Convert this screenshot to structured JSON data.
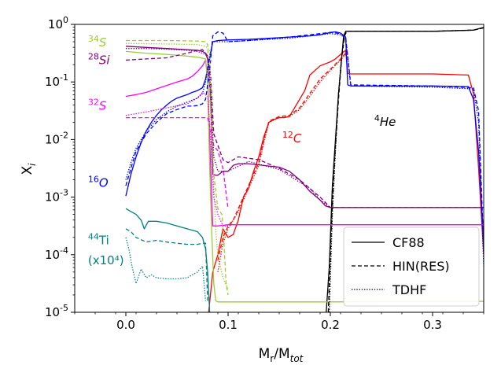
{
  "chart_data": {
    "type": "line",
    "xlabel": "M_r/M_tot",
    "ylabel": "X_i",
    "xlim": [
      -0.05,
      0.35
    ],
    "ylim_log10": [
      -5,
      0
    ],
    "yscale": "log",
    "x_ticks": [
      {
        "value": 0.0,
        "label": "0.0"
      },
      {
        "value": 0.1,
        "label": "0.1"
      },
      {
        "value": 0.2,
        "label": "0.2"
      },
      {
        "value": 0.3,
        "label": "0.3"
      }
    ],
    "y_ticks": [
      {
        "value": 0,
        "mantissa": "10",
        "exp": "0"
      },
      {
        "value": -1,
        "mantissa": "10",
        "exp": "-1"
      },
      {
        "value": -2,
        "mantissa": "10",
        "exp": "-2"
      },
      {
        "value": -3,
        "mantissa": "10",
        "exp": "-3"
      },
      {
        "value": -4,
        "mantissa": "10",
        "exp": "-4"
      },
      {
        "value": -5,
        "mantissa": "10",
        "exp": "-5"
      }
    ],
    "legend": [
      {
        "label": "CF88",
        "style": "solid"
      },
      {
        "label": "HIN(RES)",
        "style": "dashed"
      },
      {
        "label": "TDHF",
        "style": "dotted"
      }
    ],
    "annotations": [
      {
        "id": "s34",
        "sup": "34",
        "text": "S",
        "color": "#9acd32",
        "x": -0.037,
        "y": -0.38
      },
      {
        "id": "si28",
        "sup": "28",
        "text": "Si",
        "color": "#800080",
        "x": -0.037,
        "y": -0.69
      },
      {
        "id": "s32",
        "sup": "32",
        "text": "S",
        "color": "#ff00ff",
        "x": -0.037,
        "y": -1.48
      },
      {
        "id": "o16",
        "sup": "16",
        "text": "O",
        "color": "#0000ff",
        "x": -0.037,
        "y": -2.82
      },
      {
        "id": "ti44",
        "sup": "44",
        "text": "Ti",
        "color": "#008080",
        "x": -0.037,
        "y": -3.82
      },
      {
        "id": "ti44note",
        "sup": "",
        "text": "(x10⁴)",
        "color": "#008080",
        "x": -0.037,
        "y": -4.17
      },
      {
        "id": "c12",
        "sup": "12",
        "text": "C",
        "color": "#ff0000",
        "x": 0.153,
        "y": -2.05
      },
      {
        "id": "he4",
        "sup": "4",
        "text": "He",
        "color": "#000000",
        "x": 0.243,
        "y": -1.76
      }
    ],
    "series": [
      {
        "name": "4He",
        "color": "#000000",
        "style": "solid",
        "x": [
          0.196,
          0.199,
          0.202,
          0.205,
          0.208,
          0.211,
          0.213,
          0.215,
          0.217,
          0.3,
          0.34,
          0.35
        ],
        "y": [
          -5,
          -4.2,
          -2.8,
          -2.0,
          -1.2,
          -0.6,
          -0.2,
          -0.12,
          -0.12,
          -0.12,
          -0.1,
          -0.05
        ]
      },
      {
        "name": "12C",
        "color": "#ff0000",
        "style": "solid",
        "x": [
          0.081,
          0.085,
          0.09,
          0.095,
          0.1,
          0.105,
          0.11,
          0.115,
          0.12,
          0.125,
          0.13,
          0.135,
          0.14,
          0.145,
          0.15,
          0.155,
          0.16,
          0.17,
          0.175,
          0.18,
          0.19,
          0.2,
          0.205,
          0.21,
          0.215,
          0.217,
          0.22,
          0.3,
          0.335,
          0.34,
          0.345,
          0.35
        ],
        "y": [
          -5,
          -4.3,
          -4.0,
          -3.55,
          -3.7,
          -3.65,
          -3.4,
          -3.0,
          -2.85,
          -2.55,
          -2.3,
          -1.95,
          -1.7,
          -1.65,
          -1.62,
          -1.62,
          -1.6,
          -1.3,
          -1.15,
          -0.88,
          -0.72,
          -0.65,
          -0.6,
          -0.52,
          -0.45,
          -0.85,
          -0.86,
          -0.86,
          -0.88,
          -1.2,
          -2.5,
          -4.0
        ]
      },
      {
        "name": "16O",
        "color": "#0000ff",
        "style": "solid",
        "x": [
          0.0,
          0.005,
          0.01,
          0.015,
          0.02,
          0.025,
          0.03,
          0.035,
          0.04,
          0.045,
          0.05,
          0.055,
          0.06,
          0.065,
          0.07,
          0.075,
          0.078,
          0.08,
          0.082,
          0.085,
          0.09,
          0.1,
          0.12,
          0.14,
          0.16,
          0.18,
          0.19,
          0.195,
          0.2,
          0.205,
          0.21,
          0.215,
          0.217,
          0.22,
          0.3,
          0.335,
          0.34,
          0.345,
          0.35
        ],
        "y": [
          -2.98,
          -2.6,
          -2.3,
          -2.05,
          -1.85,
          -1.7,
          -1.58,
          -1.48,
          -1.4,
          -1.33,
          -1.28,
          -1.25,
          -1.22,
          -1.18,
          -1.15,
          -1.1,
          -0.95,
          -0.75,
          -0.6,
          -0.3,
          -0.28,
          -0.27,
          -0.26,
          -0.24,
          -0.22,
          -0.2,
          -0.18,
          -0.16,
          -0.14,
          -0.13,
          -0.15,
          -0.22,
          -1.05,
          -1.07,
          -1.07,
          -1.08,
          -1.3,
          -2.2,
          -3.8
        ]
      },
      {
        "name": "28Si",
        "color": "#800080",
        "style": "solid",
        "x": [
          0.0,
          0.02,
          0.04,
          0.06,
          0.07,
          0.075,
          0.078,
          0.08,
          0.083,
          0.085,
          0.088,
          0.09,
          0.095,
          0.1,
          0.105,
          0.11,
          0.115,
          0.12,
          0.13,
          0.14,
          0.15,
          0.16,
          0.17,
          0.18,
          0.19,
          0.195,
          0.2,
          0.3,
          0.35
        ],
        "y": [
          -0.38,
          -0.4,
          -0.42,
          -0.44,
          -0.45,
          -0.47,
          -0.5,
          -0.6,
          -1.3,
          -2.6,
          -2.62,
          -2.62,
          -2.55,
          -2.55,
          -2.45,
          -2.42,
          -2.42,
          -2.42,
          -2.44,
          -2.46,
          -2.48,
          -2.55,
          -2.7,
          -2.9,
          -3.05,
          -3.15,
          -3.18,
          -3.18,
          -3.18
        ]
      },
      {
        "name": "32S",
        "color": "#ff00ff",
        "style": "solid",
        "x": [
          0.0,
          0.01,
          0.02,
          0.03,
          0.04,
          0.05,
          0.06,
          0.065,
          0.07,
          0.075,
          0.078,
          0.08,
          0.082,
          0.085,
          0.09,
          0.095,
          0.1,
          0.3,
          0.35
        ],
        "y": [
          -1.25,
          -1.22,
          -1.18,
          -1.12,
          -1.06,
          -1.0,
          -0.95,
          -0.9,
          -0.82,
          -0.72,
          -0.62,
          -0.9,
          -2.0,
          -3.5,
          -3.5,
          -3.49,
          -3.48,
          -3.48,
          -3.48
        ]
      },
      {
        "name": "34S",
        "color": "#9acd32",
        "style": "solid",
        "x": [
          0.0,
          0.02,
          0.04,
          0.06,
          0.07,
          0.078,
          0.08,
          0.082,
          0.084,
          0.086,
          0.088,
          0.09,
          0.095,
          0.1,
          0.2,
          0.3,
          0.35
        ],
        "y": [
          -0.47,
          -0.5,
          -0.52,
          -0.55,
          -0.57,
          -0.6,
          -1.0,
          -2.5,
          -3.6,
          -4.5,
          -4.8,
          -4.82,
          -4.82,
          -4.82,
          -4.82,
          -4.81,
          -4.81
        ]
      },
      {
        "name": "44Ti",
        "color": "#008080",
        "style": "solid",
        "x": [
          0.0,
          0.005,
          0.01,
          0.015,
          0.018,
          0.022,
          0.03,
          0.04,
          0.05,
          0.06,
          0.07,
          0.075,
          0.078,
          0.08,
          0.082
        ],
        "y": [
          -3.2,
          -3.25,
          -3.3,
          -3.4,
          -3.55,
          -3.42,
          -3.42,
          -3.45,
          -3.5,
          -3.55,
          -3.6,
          -3.7,
          -3.9,
          -4.3,
          -5.0
        ]
      },
      {
        "name": "34S",
        "color": "#9acd32",
        "style": "dashed",
        "x": [
          0.0,
          0.04,
          0.07,
          0.078,
          0.08,
          0.082,
          0.084,
          0.086,
          0.09,
          0.094,
          0.096,
          0.098,
          0.1
        ],
        "y": [
          -0.28,
          -0.28,
          -0.29,
          -0.3,
          -0.35,
          -1.2,
          -1.9,
          -2.6,
          -3.2,
          -3.3,
          -3.8,
          -4.5,
          -4.7
        ]
      },
      {
        "name": "28Si",
        "color": "#800080",
        "style": "dashed",
        "x": [
          0.0,
          0.02,
          0.04,
          0.06,
          0.07,
          0.075,
          0.078,
          0.08,
          0.083,
          0.086,
          0.09,
          0.095,
          0.1,
          0.11,
          0.13,
          0.15,
          0.17,
          0.19,
          0.2,
          0.35
        ],
        "y": [
          -0.62,
          -0.6,
          -0.58,
          -0.5,
          -0.45,
          -0.44,
          -0.5,
          -0.55,
          -0.9,
          -1.9,
          -2.1,
          -2.35,
          -2.4,
          -2.3,
          -2.35,
          -2.5,
          -2.7,
          -3.0,
          -3.18,
          -3.18
        ]
      },
      {
        "name": "32S",
        "color": "#ff00ff",
        "style": "dashed",
        "x": [
          0.0,
          0.04,
          0.07,
          0.08,
          0.083,
          0.086,
          0.09,
          0.095,
          0.1
        ],
        "y": [
          -1.62,
          -1.62,
          -1.62,
          -1.62,
          -1.85,
          -2.1,
          -2.2,
          -2.5,
          -3.2
        ]
      },
      {
        "name": "16O",
        "color": "#0000ff",
        "style": "dashed",
        "x": [
          0.0,
          0.005,
          0.01,
          0.02,
          0.03,
          0.04,
          0.05,
          0.055,
          0.06,
          0.065,
          0.07,
          0.075,
          0.078,
          0.082,
          0.085,
          0.09,
          0.095,
          0.1,
          0.12,
          0.14,
          0.16,
          0.18,
          0.19,
          0.2,
          0.21,
          0.215,
          0.22,
          0.3,
          0.34,
          0.345,
          0.35
        ],
        "y": [
          -2.8,
          -2.5,
          -2.2,
          -1.9,
          -1.7,
          -1.55,
          -1.48,
          -1.45,
          -1.42,
          -1.42,
          -1.41,
          -1.38,
          -1.3,
          -0.8,
          -0.2,
          -0.13,
          -0.15,
          -0.3,
          -0.28,
          -0.25,
          -0.22,
          -0.18,
          -0.16,
          -0.14,
          -0.16,
          -0.22,
          -1.05,
          -1.07,
          -1.1,
          -1.5,
          -3.9
        ]
      },
      {
        "name": "12C",
        "color": "#ff0000",
        "style": "dashed",
        "x": [
          0.09,
          0.095,
          0.1,
          0.105,
          0.11,
          0.115,
          0.12,
          0.13,
          0.135,
          0.14,
          0.15,
          0.16,
          0.17,
          0.18,
          0.19,
          0.2,
          0.21,
          0.215
        ],
        "y": [
          -4.1,
          -3.7,
          -3.5,
          -3.4,
          -3.2,
          -3.0,
          -2.8,
          -2.4,
          -2.0,
          -1.68,
          -1.6,
          -1.58,
          -1.45,
          -1.2,
          -0.95,
          -0.78,
          -0.6,
          -0.5
        ]
      },
      {
        "name": "44Ti",
        "color": "#008080",
        "style": "dashed",
        "x": [
          0.0,
          0.005,
          0.01,
          0.02,
          0.03,
          0.04,
          0.05,
          0.06,
          0.07,
          0.075,
          0.078,
          0.08
        ],
        "y": [
          -3.55,
          -3.6,
          -3.7,
          -3.78,
          -3.75,
          -3.78,
          -3.8,
          -3.82,
          -3.82,
          -3.8,
          -3.8,
          -4.8
        ]
      },
      {
        "name": "He",
        "color": "#000000",
        "style": "dashed",
        "x": [
          0.198,
          0.201,
          0.204,
          0.208,
          0.211,
          0.214,
          0.216,
          0.3,
          0.34,
          0.35
        ],
        "y": [
          -5,
          -3.5,
          -2.4,
          -1.3,
          -0.6,
          -0.2,
          -0.12,
          -0.12,
          -0.1,
          -0.06
        ]
      },
      {
        "name": "34S",
        "color": "#9acd32",
        "style": "dotted",
        "x": [
          0.0,
          0.04,
          0.07,
          0.078,
          0.082,
          0.084,
          0.086,
          0.088,
          0.09,
          0.095,
          0.1
        ],
        "y": [
          -0.33,
          -0.34,
          -0.35,
          -0.38,
          -0.45,
          -1.5,
          -2.8,
          -3.6,
          -4.0,
          -4.4,
          -4.6
        ]
      },
      {
        "name": "28Si",
        "color": "#800080",
        "style": "dotted",
        "x": [
          0.0,
          0.02,
          0.04,
          0.06,
          0.07,
          0.078,
          0.08,
          0.083,
          0.086,
          0.09,
          0.1,
          0.12,
          0.15,
          0.18,
          0.19,
          0.2
        ],
        "y": [
          -0.42,
          -0.42,
          -0.43,
          -0.45,
          -0.47,
          -0.52,
          -0.6,
          -1.1,
          -2.3,
          -2.55,
          -2.55,
          -2.38,
          -2.52,
          -2.85,
          -3.05,
          -3.18
        ]
      },
      {
        "name": "32S",
        "color": "#ff00ff",
        "style": "dotted",
        "x": [
          0.0,
          0.02,
          0.04,
          0.06,
          0.07,
          0.075,
          0.08,
          0.083,
          0.086,
          0.09,
          0.095,
          0.1
        ],
        "y": [
          -1.58,
          -1.52,
          -1.45,
          -1.38,
          -1.28,
          -1.18,
          -1.25,
          -2.0,
          -3.0,
          -3.3,
          -3.5,
          -3.5
        ]
      },
      {
        "name": "16O",
        "color": "#0000ff",
        "style": "dotted",
        "x": [
          0.0,
          0.005,
          0.01,
          0.02,
          0.03,
          0.04,
          0.05,
          0.06,
          0.07,
          0.075,
          0.078,
          0.082,
          0.085,
          0.09,
          0.1,
          0.12,
          0.14,
          0.16,
          0.18,
          0.2,
          0.21,
          0.215,
          0.22,
          0.3,
          0.34,
          0.345,
          0.35
        ],
        "y": [
          -2.7,
          -2.4,
          -2.15,
          -1.85,
          -1.65,
          -1.52,
          -1.42,
          -1.35,
          -1.28,
          -1.2,
          -1.0,
          -0.55,
          -0.3,
          -0.3,
          -0.3,
          -0.28,
          -0.26,
          -0.24,
          -0.2,
          -0.16,
          -0.18,
          -0.25,
          -1.07,
          -1.09,
          -1.12,
          -1.7,
          -4.2
        ]
      },
      {
        "name": "12C",
        "color": "#ff0000",
        "style": "dotted",
        "x": [
          0.09,
          0.095,
          0.1,
          0.105,
          0.11,
          0.115,
          0.12,
          0.13,
          0.135,
          0.14,
          0.15,
          0.16,
          0.17,
          0.18,
          0.19,
          0.2,
          0.21,
          0.215
        ],
        "y": [
          -4.3,
          -3.8,
          -3.55,
          -3.4,
          -3.25,
          -3.05,
          -2.85,
          -2.45,
          -2.05,
          -1.7,
          -1.62,
          -1.6,
          -1.48,
          -1.25,
          -1.0,
          -0.8,
          -0.62,
          -0.52
        ]
      },
      {
        "name": "44Ti",
        "color": "#008080",
        "style": "dotted",
        "x": [
          0.0,
          0.003,
          0.006,
          0.01,
          0.015,
          0.02,
          0.025,
          0.03,
          0.04,
          0.05,
          0.06,
          0.07,
          0.075,
          0.078
        ],
        "y": [
          -3.7,
          -3.9,
          -4.2,
          -4.5,
          -4.25,
          -4.4,
          -4.35,
          -4.4,
          -4.42,
          -4.42,
          -4.4,
          -4.3,
          -4.2,
          -4.8
        ]
      },
      {
        "name": "He",
        "color": "#000000",
        "style": "dotted",
        "x": [
          0.199,
          0.202,
          0.205,
          0.208,
          0.211,
          0.214,
          0.216,
          0.3,
          0.34,
          0.35
        ],
        "y": [
          -5,
          -3.3,
          -2.2,
          -1.2,
          -0.55,
          -0.18,
          -0.12,
          -0.12,
          -0.1,
          -0.06
        ]
      }
    ]
  }
}
